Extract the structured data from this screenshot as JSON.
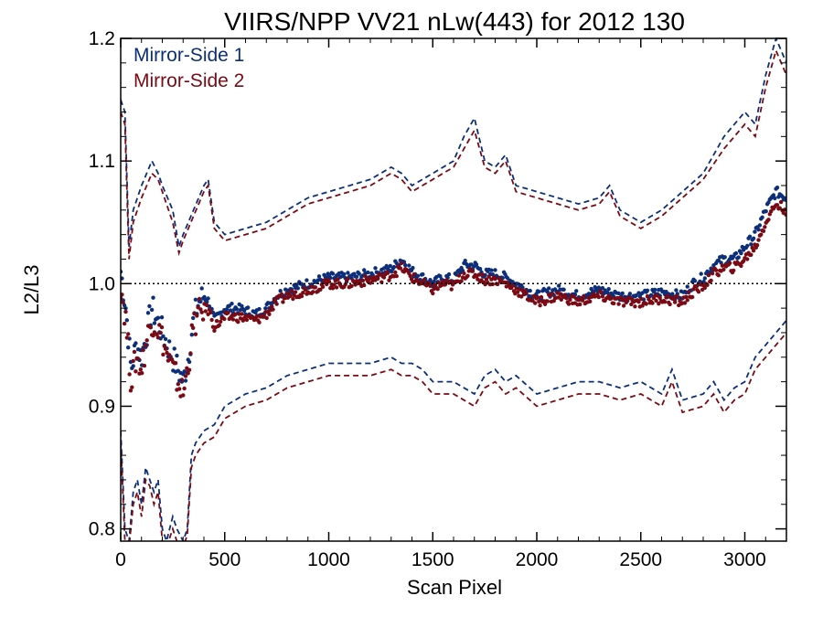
{
  "chart_data": {
    "type": "line",
    "title": "VIIRS/NPP VV21 nLw(443) for 2012 130",
    "xlabel": "Scan Pixel",
    "ylabel": "L2/L3",
    "xlim": [
      0,
      3200
    ],
    "ylim": [
      0.79,
      1.2
    ],
    "xticks": [
      0,
      500,
      1000,
      1500,
      2000,
      2500,
      3000
    ],
    "xtick_labels": [
      "0",
      "500",
      "1000",
      "1500",
      "2000",
      "2500",
      "3000"
    ],
    "yticks": [
      0.8,
      0.9,
      1.0,
      1.1,
      1.2
    ],
    "ytick_labels": [
      "0.8",
      "0.9",
      "1.0",
      "1.1",
      "1.2"
    ],
    "reference_line": 1.0,
    "legend_position": "top-left",
    "colors": {
      "ms1": "#0d2f7a",
      "ms2": "#7a0a14"
    },
    "series": [
      {
        "name": "Mirror-Side 1",
        "color": "#0d2f7a",
        "role": "mean",
        "style": "dots",
        "x": [
          0,
          25,
          50,
          75,
          100,
          125,
          150,
          175,
          200,
          225,
          250,
          275,
          300,
          325,
          350,
          375,
          400,
          425,
          450,
          475,
          500,
          550,
          600,
          650,
          700,
          750,
          800,
          900,
          1000,
          1100,
          1200,
          1300,
          1350,
          1400,
          1500,
          1550,
          1600,
          1650,
          1700,
          1750,
          1800,
          1850,
          1900,
          2000,
          2100,
          2200,
          2300,
          2400,
          2500,
          2600,
          2700,
          2750,
          2800,
          2850,
          2900,
          2950,
          3000,
          3050,
          3100,
          3150,
          3200
        ],
        "y": [
          1.01,
          0.98,
          0.93,
          0.95,
          0.94,
          0.96,
          0.98,
          0.97,
          0.96,
          0.95,
          0.94,
          0.93,
          0.92,
          0.94,
          0.97,
          0.985,
          0.99,
          0.985,
          0.97,
          0.975,
          0.98,
          0.98,
          0.978,
          0.975,
          0.98,
          0.99,
          0.995,
          1.0,
          1.005,
          1.005,
          1.008,
          1.012,
          1.02,
          1.01,
          1.0,
          1.005,
          1.003,
          1.015,
          1.015,
          1.008,
          1.008,
          1.005,
          1.0,
          0.99,
          0.995,
          0.99,
          0.995,
          0.99,
          0.99,
          0.993,
          0.99,
          1.0,
          1.005,
          1.015,
          1.02,
          1.02,
          1.03,
          1.04,
          1.06,
          1.075,
          1.07
        ]
      },
      {
        "name": "Mirror-Side 2",
        "color": "#7a0a14",
        "role": "mean",
        "style": "dots",
        "x": [
          0,
          25,
          50,
          75,
          100,
          125,
          150,
          175,
          200,
          225,
          250,
          275,
          300,
          325,
          350,
          375,
          400,
          425,
          450,
          475,
          500,
          550,
          600,
          650,
          700,
          750,
          800,
          900,
          1000,
          1100,
          1200,
          1300,
          1350,
          1400,
          1500,
          1550,
          1600,
          1650,
          1700,
          1750,
          1800,
          1850,
          1900,
          2000,
          2100,
          2200,
          2300,
          2400,
          2500,
          2600,
          2700,
          2750,
          2800,
          2850,
          2900,
          2950,
          3000,
          3050,
          3100,
          3150,
          3200
        ],
        "y": [
          1.0,
          0.97,
          0.92,
          0.94,
          0.93,
          0.955,
          0.97,
          0.965,
          0.955,
          0.94,
          0.93,
          0.92,
          0.91,
          0.935,
          0.965,
          0.975,
          0.98,
          0.978,
          0.965,
          0.968,
          0.972,
          0.973,
          0.972,
          0.97,
          0.975,
          0.985,
          0.99,
          0.995,
          1.0,
          1.0,
          1.003,
          1.007,
          1.013,
          1.005,
          0.995,
          1.0,
          0.998,
          1.008,
          1.008,
          1.003,
          1.003,
          1.0,
          0.995,
          0.985,
          0.99,
          0.985,
          0.99,
          0.985,
          0.985,
          0.988,
          0.985,
          0.993,
          0.998,
          1.008,
          1.013,
          1.013,
          1.02,
          1.03,
          1.05,
          1.065,
          1.06
        ]
      },
      {
        "name": "",
        "color": "#0d2f7a",
        "role": "upper-bound",
        "style": "dashed",
        "x": [
          0,
          20,
          40,
          60,
          100,
          150,
          180,
          200,
          250,
          280,
          300,
          350,
          400,
          420,
          450,
          500,
          600,
          700,
          800,
          900,
          1000,
          1100,
          1200,
          1300,
          1350,
          1400,
          1450,
          1500,
          1600,
          1650,
          1700,
          1750,
          1800,
          1850,
          1900,
          2000,
          2100,
          2200,
          2300,
          2350,
          2400,
          2500,
          2600,
          2700,
          2800,
          2900,
          3000,
          3050,
          3100,
          3150,
          3200
        ],
        "y": [
          1.15,
          1.14,
          1.03,
          1.06,
          1.08,
          1.1,
          1.09,
          1.08,
          1.06,
          1.03,
          1.04,
          1.06,
          1.08,
          1.085,
          1.05,
          1.04,
          1.045,
          1.05,
          1.06,
          1.07,
          1.075,
          1.08,
          1.085,
          1.095,
          1.09,
          1.08,
          1.085,
          1.09,
          1.1,
          1.12,
          1.135,
          1.1,
          1.095,
          1.105,
          1.08,
          1.075,
          1.07,
          1.065,
          1.07,
          1.08,
          1.06,
          1.05,
          1.06,
          1.075,
          1.09,
          1.12,
          1.14,
          1.13,
          1.17,
          1.2,
          1.18
        ]
      },
      {
        "name": "",
        "color": "#7a0a14",
        "role": "upper-bound",
        "style": "dashed",
        "x": [
          0,
          20,
          40,
          60,
          100,
          150,
          180,
          200,
          250,
          280,
          300,
          350,
          400,
          420,
          450,
          500,
          600,
          700,
          800,
          900,
          1000,
          1100,
          1200,
          1300,
          1350,
          1400,
          1450,
          1500,
          1600,
          1650,
          1700,
          1750,
          1800,
          1850,
          1900,
          2000,
          2100,
          2200,
          2300,
          2350,
          2400,
          2500,
          2600,
          2700,
          2800,
          2900,
          3000,
          3050,
          3100,
          3150,
          3200
        ],
        "y": [
          1.14,
          1.13,
          1.02,
          1.05,
          1.07,
          1.09,
          1.085,
          1.075,
          1.05,
          1.025,
          1.035,
          1.055,
          1.075,
          1.08,
          1.045,
          1.035,
          1.04,
          1.045,
          1.055,
          1.065,
          1.07,
          1.075,
          1.08,
          1.09,
          1.085,
          1.075,
          1.08,
          1.085,
          1.095,
          1.11,
          1.125,
          1.095,
          1.09,
          1.1,
          1.075,
          1.07,
          1.065,
          1.06,
          1.065,
          1.075,
          1.055,
          1.045,
          1.055,
          1.07,
          1.085,
          1.11,
          1.13,
          1.12,
          1.16,
          1.19,
          1.17
        ]
      },
      {
        "name": "",
        "color": "#0d2f7a",
        "role": "lower-bound",
        "style": "dashed",
        "x": [
          0,
          20,
          40,
          60,
          80,
          100,
          120,
          140,
          160,
          180,
          200,
          220,
          250,
          270,
          300,
          320,
          340,
          360,
          400,
          450,
          500,
          600,
          700,
          800,
          900,
          1000,
          1100,
          1200,
          1300,
          1350,
          1400,
          1450,
          1500,
          1600,
          1650,
          1700,
          1750,
          1800,
          1850,
          1900,
          2000,
          2100,
          2200,
          2300,
          2400,
          2500,
          2600,
          2650,
          2700,
          2800,
          2850,
          2900,
          2950,
          3000,
          3050,
          3100,
          3150,
          3200
        ],
        "y": [
          0.88,
          0.8,
          0.79,
          0.83,
          0.84,
          0.82,
          0.85,
          0.84,
          0.83,
          0.84,
          0.8,
          0.79,
          0.81,
          0.8,
          0.79,
          0.8,
          0.86,
          0.87,
          0.88,
          0.885,
          0.9,
          0.91,
          0.915,
          0.925,
          0.93,
          0.935,
          0.935,
          0.935,
          0.94,
          0.935,
          0.935,
          0.93,
          0.92,
          0.92,
          0.915,
          0.91,
          0.925,
          0.93,
          0.92,
          0.925,
          0.91,
          0.915,
          0.92,
          0.92,
          0.915,
          0.92,
          0.91,
          0.93,
          0.905,
          0.91,
          0.92,
          0.905,
          0.915,
          0.92,
          0.94,
          0.95,
          0.96,
          0.97
        ]
      },
      {
        "name": "",
        "color": "#7a0a14",
        "role": "lower-bound",
        "style": "dashed",
        "x": [
          0,
          20,
          40,
          60,
          80,
          100,
          120,
          140,
          160,
          180,
          200,
          220,
          250,
          270,
          300,
          320,
          340,
          360,
          400,
          450,
          500,
          600,
          700,
          800,
          900,
          1000,
          1100,
          1200,
          1300,
          1350,
          1400,
          1450,
          1500,
          1600,
          1650,
          1700,
          1750,
          1800,
          1850,
          1900,
          2000,
          2100,
          2200,
          2300,
          2400,
          2500,
          2600,
          2650,
          2700,
          2800,
          2850,
          2900,
          2950,
          3000,
          3050,
          3100,
          3150,
          3200
        ],
        "y": [
          0.87,
          0.79,
          0.785,
          0.82,
          0.83,
          0.81,
          0.84,
          0.835,
          0.82,
          0.83,
          0.79,
          0.785,
          0.8,
          0.79,
          0.785,
          0.795,
          0.85,
          0.86,
          0.87,
          0.875,
          0.89,
          0.9,
          0.905,
          0.915,
          0.92,
          0.925,
          0.925,
          0.925,
          0.93,
          0.925,
          0.925,
          0.92,
          0.91,
          0.91,
          0.905,
          0.9,
          0.915,
          0.92,
          0.91,
          0.915,
          0.9,
          0.905,
          0.91,
          0.91,
          0.905,
          0.91,
          0.9,
          0.92,
          0.895,
          0.9,
          0.91,
          0.895,
          0.905,
          0.91,
          0.93,
          0.94,
          0.95,
          0.96
        ]
      }
    ]
  }
}
